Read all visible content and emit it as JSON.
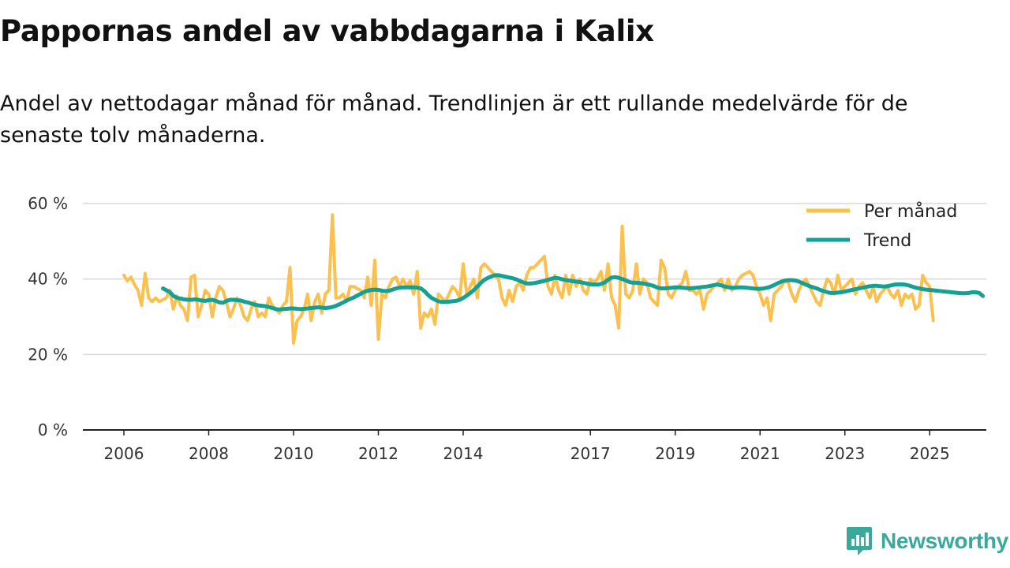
{
  "title": "Pappornas andel av vabbdagarna i Kalix",
  "subtitle": "Andel av nettodagar månad för månad. Trendlinjen är ett rullande medelvärde för de senaste tolv månaderna.",
  "brand": {
    "name": "Newsworthy",
    "icon": "newsworthy-logo-icon"
  },
  "colors": {
    "monthly": "#fbc04d",
    "trend": "#169f93",
    "grid": "#d9d9d9",
    "axis": "#222222",
    "brand": "#3ca79b"
  },
  "chart_data": {
    "type": "line",
    "title": "Pappornas andel av vabbdagarna i Kalix",
    "xlabel": "",
    "ylabel": "",
    "ylim": [
      0,
      60
    ],
    "xlim": [
      2005.75,
      2026.75
    ],
    "y_ticks": [
      0,
      20,
      40,
      60
    ],
    "y_tick_labels": [
      "0 %",
      "20 %",
      "40 %",
      "60 %"
    ],
    "x_ticks": [
      2006,
      2008,
      2010,
      2012,
      2014,
      2017,
      2019,
      2021,
      2023,
      2025
    ],
    "x_tick_labels": [
      "2006",
      "2008",
      "2010",
      "2012",
      "2014",
      "2017",
      "2019",
      "2021",
      "2023",
      "2025"
    ],
    "grid": true,
    "legend_position": "top-right",
    "series": [
      {
        "name": "Per månad",
        "start": 2006.0,
        "step": 0.08333,
        "values": [
          41,
          39.5,
          40.5,
          38.5,
          37,
          33,
          41.5,
          35,
          34,
          35,
          34,
          34.5,
          35,
          37,
          32,
          35.5,
          33,
          32,
          29,
          40.5,
          41,
          30,
          33,
          37,
          36,
          30,
          35,
          38,
          37,
          34,
          30,
          32,
          35,
          33,
          30,
          29,
          32,
          34,
          30,
          31,
          30,
          35,
          33,
          32,
          31,
          33,
          34,
          43,
          23,
          29,
          30,
          32,
          36,
          29,
          34,
          36,
          31,
          36,
          37,
          57,
          35,
          35,
          36,
          34,
          38,
          38,
          37.5,
          37,
          35,
          40.5,
          33,
          45,
          24,
          36,
          35,
          38,
          40,
          40.5,
          38,
          40,
          38,
          39.5,
          36,
          42,
          27,
          31,
          30,
          32,
          28,
          36,
          35,
          34,
          36,
          38,
          37,
          35,
          44,
          36,
          38,
          40,
          35,
          43,
          44,
          43,
          42,
          41,
          40,
          35,
          33,
          37,
          34,
          38,
          39,
          37,
          41,
          43,
          43,
          44,
          45,
          46,
          38,
          36,
          41,
          37,
          35,
          41,
          36,
          41,
          38,
          40,
          37,
          36,
          40,
          39,
          40,
          42,
          37,
          44,
          35,
          33,
          27,
          54,
          36,
          35,
          37,
          44,
          36,
          40,
          39,
          35,
          34,
          33,
          45,
          43,
          36,
          35,
          37,
          38,
          39,
          42,
          37,
          37,
          36,
          37,
          32,
          36,
          37,
          38,
          39,
          40,
          37,
          40,
          37,
          38,
          40,
          41,
          41.5,
          42,
          41,
          38,
          36,
          33,
          35,
          29,
          36,
          37,
          38,
          39.5,
          39,
          36,
          34,
          37,
          39,
          40,
          38,
          36,
          34,
          33,
          37,
          40,
          39,
          36,
          41,
          37,
          38,
          39,
          40,
          36,
          38,
          39,
          37,
          35,
          38,
          34,
          36,
          37,
          38,
          36,
          35,
          37,
          33,
          36,
          35,
          36,
          32,
          33,
          41,
          39,
          38,
          29
        ]
      },
      {
        "name": "Trend",
        "start": 2006.92,
        "step": 0.08333,
        "values": [
          37.5,
          37,
          36.5,
          35.5,
          35,
          34.8,
          34.6,
          34.5,
          34.5,
          34.6,
          34.5,
          34.3,
          34.2,
          34.4,
          34.5,
          34.2,
          33.8,
          33.7,
          34.2,
          34.5,
          34.5,
          34.4,
          34.3,
          34,
          33.8,
          33.5,
          33.2,
          33,
          32.9,
          32.8,
          32.6,
          32.3,
          32,
          31.9,
          32,
          32.1,
          32.2,
          32.2,
          32.1,
          32,
          32.1,
          32.2,
          32.3,
          32.4,
          32.5,
          32.4,
          32.3,
          32.4,
          32.6,
          32.9,
          33.3,
          33.8,
          34.3,
          34.7,
          35.1,
          35.6,
          36.1,
          36.6,
          36.9,
          37.1,
          37.2,
          37.1,
          36.9,
          36.8,
          36.9,
          37.2,
          37.5,
          37.7,
          37.8,
          37.8,
          37.8,
          37.8,
          37.7,
          37.5,
          36.8,
          35.8,
          35,
          34.5,
          34.1,
          33.9,
          33.9,
          34,
          34.1,
          34.2,
          34.5,
          35,
          35.6,
          36.3,
          37.1,
          38,
          39,
          39.8,
          40.3,
          40.7,
          41,
          41,
          40.8,
          40.6,
          40.4,
          40.2,
          39.9,
          39.5,
          39.1,
          38.8,
          38.8,
          38.9,
          39.1,
          39.3,
          39.5,
          39.8,
          40.1,
          40.3,
          40.2,
          39.9,
          39.7,
          39.6,
          39.4,
          39.3,
          39.2,
          39,
          38.8,
          38.6,
          38.5,
          38.5,
          38.7,
          39.1,
          39.8,
          40.4,
          40.5,
          40.3,
          40,
          39.6,
          39.2,
          39,
          39,
          38.9,
          38.8,
          38.6,
          38.4,
          38.1,
          37.7,
          37.5,
          37.5,
          37.6,
          37.7,
          37.8,
          37.8,
          37.7,
          37.6,
          37.5,
          37.6,
          37.7,
          37.8,
          37.9,
          38,
          38.2,
          38.4,
          38.5,
          38.3,
          38,
          37.8,
          37.7,
          37.7,
          37.8,
          37.8,
          37.7,
          37.6,
          37.5,
          37.4,
          37.4,
          37.5,
          37.7,
          38,
          38.4,
          38.9,
          39.3,
          39.6,
          39.7,
          39.7,
          39.6,
          39.3,
          38.9,
          38.5,
          38.1,
          37.8,
          37.5,
          37.1,
          36.8,
          36.5,
          36.3,
          36.3,
          36.4,
          36.5,
          36.7,
          36.9,
          37.1,
          37.3,
          37.5,
          37.7,
          37.9,
          38.1,
          38.2,
          38.2,
          38.1,
          38,
          38.1,
          38.3,
          38.5,
          38.6,
          38.6,
          38.5,
          38.3,
          38,
          37.7,
          37.5,
          37.3,
          37.2,
          37.1,
          37,
          36.9,
          36.8,
          36.7,
          36.6,
          36.5,
          36.4,
          36.3,
          36.2,
          36.2,
          36.3,
          36.5,
          36.5,
          36.3,
          35.5
        ]
      }
    ]
  }
}
